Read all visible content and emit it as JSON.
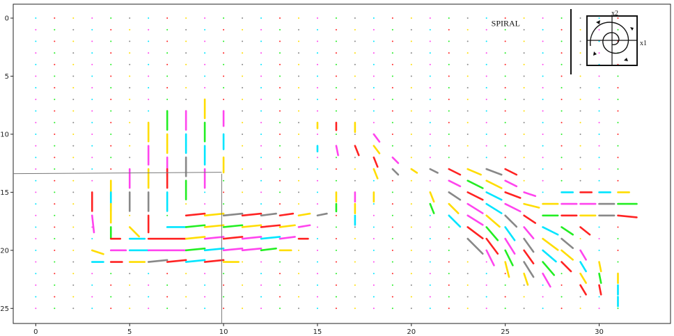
{
  "chart_data": {
    "type": "quiver",
    "title": "",
    "xlabel": "",
    "ylabel": "",
    "xlim": [
      -1.2,
      33.8
    ],
    "ylim": [
      26.3,
      -1.2
    ],
    "x_ticks": [
      0,
      5,
      10,
      15,
      20,
      25,
      30
    ],
    "y_ticks": [
      0,
      5,
      10,
      15,
      20,
      25
    ],
    "grid": false,
    "palette": [
      "#00e5ff",
      "#ff2222",
      "#ffdd00",
      "#ff44ee",
      "#22ee22",
      "#888888"
    ],
    "dot_grid": {
      "x_from": 0,
      "x_to": 31,
      "y_from": 0,
      "y_to": 25,
      "step": 1
    },
    "annotation": {
      "text": "SPIRAL",
      "x": 25,
      "y": 0.7
    },
    "inset": {
      "x1_label": "x1",
      "x2_label": "x2"
    },
    "crosshair": {
      "x": 9.9,
      "y": 13.4
    },
    "vectors": [
      {
        "x": 3,
        "y": 15,
        "u": 0,
        "v": 1,
        "c": 1
      },
      {
        "x": 3,
        "y": 17,
        "u": 0.1,
        "v": 0.9,
        "c": 3
      },
      {
        "x": 3,
        "y": 20,
        "u": 0.6,
        "v": 0.2,
        "c": 2
      },
      {
        "x": 3,
        "y": 21,
        "u": 0.6,
        "v": 0,
        "c": 0
      },
      {
        "x": 4,
        "y": 14,
        "u": 0,
        "v": 1,
        "c": 2
      },
      {
        "x": 4,
        "y": 15,
        "u": 0,
        "v": 1,
        "c": 0
      },
      {
        "x": 4,
        "y": 16,
        "u": 0,
        "v": 1,
        "c": 2
      },
      {
        "x": 4,
        "y": 18,
        "u": 0,
        "v": 0.6,
        "c": 4
      },
      {
        "x": 4,
        "y": 19,
        "u": 0.5,
        "v": 0,
        "c": 1
      },
      {
        "x": 4,
        "y": 20,
        "u": 0.8,
        "v": 0,
        "c": 3
      },
      {
        "x": 4,
        "y": 21,
        "u": 0.6,
        "v": 0,
        "c": 1
      },
      {
        "x": 5,
        "y": 13,
        "u": 0,
        "v": 1,
        "c": 3
      },
      {
        "x": 5,
        "y": 15,
        "u": 0,
        "v": 1,
        "c": 5
      },
      {
        "x": 5,
        "y": 18,
        "u": 0.5,
        "v": 0.5,
        "c": 2
      },
      {
        "x": 5,
        "y": 19,
        "u": 0.8,
        "v": 0,
        "c": 0
      },
      {
        "x": 5,
        "y": 20,
        "u": 1,
        "v": 0,
        "c": 0
      },
      {
        "x": 5,
        "y": 21,
        "u": 0.8,
        "v": 0,
        "c": 2
      },
      {
        "x": 6,
        "y": 9,
        "u": 0,
        "v": 1,
        "c": 2
      },
      {
        "x": 6,
        "y": 11,
        "u": 0,
        "v": 1,
        "c": 3
      },
      {
        "x": 6,
        "y": 13,
        "u": 0,
        "v": 1,
        "c": 2
      },
      {
        "x": 6,
        "y": 15,
        "u": 0,
        "v": 1,
        "c": 5
      },
      {
        "x": 6,
        "y": 17,
        "u": 0,
        "v": 0.9,
        "c": 1
      },
      {
        "x": 6,
        "y": 19,
        "u": 1,
        "v": 0,
        "c": 1
      },
      {
        "x": 6,
        "y": 20,
        "u": 1,
        "v": 0,
        "c": 3
      },
      {
        "x": 6,
        "y": 21,
        "u": 1,
        "v": -0.1,
        "c": 5
      },
      {
        "x": 7,
        "y": 8,
        "u": 0,
        "v": 1,
        "c": 4
      },
      {
        "x": 7,
        "y": 10,
        "u": 0,
        "v": 1,
        "c": 2
      },
      {
        "x": 7,
        "y": 12,
        "u": 0,
        "v": 1,
        "c": 3
      },
      {
        "x": 7,
        "y": 13,
        "u": 0,
        "v": 1,
        "c": 1
      },
      {
        "x": 7,
        "y": 15,
        "u": 0,
        "v": 1,
        "c": 0
      },
      {
        "x": 7,
        "y": 18,
        "u": 1,
        "v": 0,
        "c": 0
      },
      {
        "x": 7,
        "y": 19,
        "u": 1,
        "v": 0,
        "c": 1
      },
      {
        "x": 7,
        "y": 20,
        "u": 1,
        "v": 0,
        "c": 3
      },
      {
        "x": 7,
        "y": 21,
        "u": 1,
        "v": -0.1,
        "c": 1
      },
      {
        "x": 8,
        "y": 8,
        "u": 0,
        "v": 1,
        "c": 3
      },
      {
        "x": 8,
        "y": 10,
        "u": 0,
        "v": 1,
        "c": 0
      },
      {
        "x": 8,
        "y": 12,
        "u": 0,
        "v": 1,
        "c": 5
      },
      {
        "x": 8,
        "y": 14,
        "u": 0,
        "v": 1,
        "c": 4
      },
      {
        "x": 8,
        "y": 17,
        "u": 1,
        "v": -0.1,
        "c": 1
      },
      {
        "x": 8,
        "y": 18,
        "u": 1,
        "v": -0.1,
        "c": 4
      },
      {
        "x": 8,
        "y": 19,
        "u": 1,
        "v": -0.1,
        "c": 2
      },
      {
        "x": 8,
        "y": 20,
        "u": 1,
        "v": -0.1,
        "c": 4
      },
      {
        "x": 8,
        "y": 21,
        "u": 1,
        "v": -0.1,
        "c": 0
      },
      {
        "x": 9,
        "y": 7,
        "u": 0,
        "v": 1,
        "c": 2
      },
      {
        "x": 9,
        "y": 9,
        "u": 0,
        "v": 1,
        "c": 4
      },
      {
        "x": 9,
        "y": 11,
        "u": 0,
        "v": 1,
        "c": 0
      },
      {
        "x": 9,
        "y": 13,
        "u": 0,
        "v": 1,
        "c": 3
      },
      {
        "x": 9,
        "y": 17,
        "u": 1,
        "v": -0.1,
        "c": 2
      },
      {
        "x": 9,
        "y": 18,
        "u": 1,
        "v": -0.1,
        "c": 2
      },
      {
        "x": 9,
        "y": 19,
        "u": 1,
        "v": -0.1,
        "c": 3
      },
      {
        "x": 9,
        "y": 20,
        "u": 1,
        "v": -0.1,
        "c": 0
      },
      {
        "x": 9,
        "y": 21,
        "u": 1,
        "v": -0.1,
        "c": 1
      },
      {
        "x": 10,
        "y": 8,
        "u": 0,
        "v": 0.8,
        "c": 3
      },
      {
        "x": 10,
        "y": 10,
        "u": 0,
        "v": 0.8,
        "c": 0
      },
      {
        "x": 10,
        "y": 12,
        "u": 0,
        "v": 0.8,
        "c": 2
      },
      {
        "x": 10,
        "y": 17,
        "u": 1,
        "v": -0.1,
        "c": 5
      },
      {
        "x": 10,
        "y": 18,
        "u": 1,
        "v": -0.1,
        "c": 4
      },
      {
        "x": 10,
        "y": 19,
        "u": 1,
        "v": -0.1,
        "c": 1
      },
      {
        "x": 10,
        "y": 20,
        "u": 1,
        "v": -0.1,
        "c": 3
      },
      {
        "x": 10,
        "y": 21,
        "u": 0.8,
        "v": 0,
        "c": 2
      },
      {
        "x": 11,
        "y": 17,
        "u": 1,
        "v": -0.1,
        "c": 1
      },
      {
        "x": 11,
        "y": 18,
        "u": 1,
        "v": -0.1,
        "c": 2
      },
      {
        "x": 11,
        "y": 19,
        "u": 1,
        "v": -0.1,
        "c": 3
      },
      {
        "x": 11,
        "y": 20,
        "u": 1,
        "v": -0.1,
        "c": 3
      },
      {
        "x": 12,
        "y": 17,
        "u": 0.8,
        "v": -0.1,
        "c": 5
      },
      {
        "x": 12,
        "y": 18,
        "u": 1,
        "v": -0.1,
        "c": 1
      },
      {
        "x": 12,
        "y": 19,
        "u": 1,
        "v": -0.1,
        "c": 0
      },
      {
        "x": 12,
        "y": 20,
        "u": 0.8,
        "v": -0.1,
        "c": 4
      },
      {
        "x": 13,
        "y": 17,
        "u": 0.7,
        "v": -0.1,
        "c": 1
      },
      {
        "x": 13,
        "y": 18,
        "u": 0.8,
        "v": -0.1,
        "c": 2
      },
      {
        "x": 13,
        "y": 19,
        "u": 0.8,
        "v": -0.1,
        "c": 3
      },
      {
        "x": 13,
        "y": 20,
        "u": 0.6,
        "v": 0,
        "c": 2
      },
      {
        "x": 14,
        "y": 17,
        "u": 0.6,
        "v": -0.1,
        "c": 2
      },
      {
        "x": 14,
        "y": 18,
        "u": 0.6,
        "v": -0.1,
        "c": 3
      },
      {
        "x": 14,
        "y": 19,
        "u": 0.5,
        "v": 0,
        "c": 1
      },
      {
        "x": 15,
        "y": 17,
        "u": 0.5,
        "v": -0.1,
        "c": 5
      },
      {
        "x": 15,
        "y": 9,
        "u": 0,
        "v": 0.3,
        "c": 2
      },
      {
        "x": 15,
        "y": 11,
        "u": 0,
        "v": 0.3,
        "c": 0
      },
      {
        "x": 16,
        "y": 9,
        "u": 0,
        "v": 0.4,
        "c": 1
      },
      {
        "x": 16,
        "y": 11,
        "u": 0.1,
        "v": 0.5,
        "c": 3
      },
      {
        "x": 16,
        "y": 15,
        "u": 0,
        "v": 0.5,
        "c": 2
      },
      {
        "x": 16,
        "y": 16,
        "u": 0,
        "v": 0.4,
        "c": 4
      },
      {
        "x": 17,
        "y": 9,
        "u": 0,
        "v": 0.5,
        "c": 2
      },
      {
        "x": 17,
        "y": 11,
        "u": 0.2,
        "v": 0.5,
        "c": 1
      },
      {
        "x": 17,
        "y": 15,
        "u": 0,
        "v": 0.5,
        "c": 3
      },
      {
        "x": 17,
        "y": 16,
        "u": 0,
        "v": 0.5,
        "c": 2
      },
      {
        "x": 17,
        "y": 17,
        "u": 0,
        "v": 0.5,
        "c": 0
      },
      {
        "x": 18,
        "y": 10,
        "u": 0.3,
        "v": 0.4,
        "c": 3
      },
      {
        "x": 18,
        "y": 11,
        "u": 0.3,
        "v": 0.4,
        "c": 2
      },
      {
        "x": 18,
        "y": 12,
        "u": 0.2,
        "v": 0.5,
        "c": 1
      },
      {
        "x": 18,
        "y": 13,
        "u": 0.2,
        "v": 0.5,
        "c": 2
      },
      {
        "x": 18,
        "y": 15,
        "u": 0,
        "v": 0.5,
        "c": 2
      },
      {
        "x": 19,
        "y": 12,
        "u": 0.3,
        "v": 0.3,
        "c": 3
      },
      {
        "x": 19,
        "y": 13,
        "u": 0.3,
        "v": 0.3,
        "c": 5
      },
      {
        "x": 20,
        "y": 13,
        "u": 0.3,
        "v": 0.2,
        "c": 2
      },
      {
        "x": 21,
        "y": 13,
        "u": 0.4,
        "v": 0.2,
        "c": 5
      },
      {
        "x": 21,
        "y": 15,
        "u": 0.2,
        "v": 0.5,
        "c": 2
      },
      {
        "x": 21,
        "y": 16,
        "u": 0.2,
        "v": 0.5,
        "c": 4
      },
      {
        "x": 22,
        "y": 13,
        "u": 0.6,
        "v": 0.3,
        "c": 1
      },
      {
        "x": 22,
        "y": 14,
        "u": 0.6,
        "v": 0.3,
        "c": 3
      },
      {
        "x": 22,
        "y": 15,
        "u": 0.6,
        "v": 0.4,
        "c": 5
      },
      {
        "x": 22,
        "y": 16,
        "u": 0.5,
        "v": 0.5,
        "c": 2
      },
      {
        "x": 22,
        "y": 17,
        "u": 0.6,
        "v": 0.6,
        "c": 0
      },
      {
        "x": 23,
        "y": 13,
        "u": 0.7,
        "v": 0.3,
        "c": 2
      },
      {
        "x": 23,
        "y": 14,
        "u": 0.8,
        "v": 0.4,
        "c": 4
      },
      {
        "x": 23,
        "y": 15,
        "u": 0.8,
        "v": 0.4,
        "c": 1
      },
      {
        "x": 23,
        "y": 16,
        "u": 0.8,
        "v": 0.5,
        "c": 3
      },
      {
        "x": 23,
        "y": 17,
        "u": 0.8,
        "v": 0.5,
        "c": 3
      },
      {
        "x": 23,
        "y": 18,
        "u": 0.8,
        "v": 0.6,
        "c": 1
      },
      {
        "x": 23,
        "y": 19,
        "u": 0.8,
        "v": 0.8,
        "c": 5
      },
      {
        "x": 24,
        "y": 13,
        "u": 0.8,
        "v": 0.3,
        "c": 5
      },
      {
        "x": 24,
        "y": 14,
        "u": 0.8,
        "v": 0.4,
        "c": 2
      },
      {
        "x": 24,
        "y": 15,
        "u": 0.8,
        "v": 0.4,
        "c": 0
      },
      {
        "x": 24,
        "y": 16,
        "u": 0.8,
        "v": 0.5,
        "c": 0
      },
      {
        "x": 24,
        "y": 17,
        "u": 0.7,
        "v": 0.6,
        "c": 2
      },
      {
        "x": 24,
        "y": 18,
        "u": 0.6,
        "v": 0.7,
        "c": 4
      },
      {
        "x": 24,
        "y": 19,
        "u": 0.6,
        "v": 0.8,
        "c": 1
      },
      {
        "x": 24,
        "y": 20,
        "u": 0.4,
        "v": 0.8,
        "c": 3
      },
      {
        "x": 25,
        "y": 13,
        "u": 0.6,
        "v": 0.3,
        "c": 1
      },
      {
        "x": 25,
        "y": 14,
        "u": 0.6,
        "v": 0.3,
        "c": 3
      },
      {
        "x": 25,
        "y": 15,
        "u": 0.8,
        "v": 0.3,
        "c": 1
      },
      {
        "x": 25,
        "y": 16,
        "u": 0.8,
        "v": 0.4,
        "c": 3
      },
      {
        "x": 25,
        "y": 17,
        "u": 0.6,
        "v": 0.6,
        "c": 5
      },
      {
        "x": 25,
        "y": 18,
        "u": 0.5,
        "v": 0.7,
        "c": 0
      },
      {
        "x": 25,
        "y": 19,
        "u": 0.5,
        "v": 0.8,
        "c": 3
      },
      {
        "x": 25,
        "y": 20,
        "u": 0.4,
        "v": 0.8,
        "c": 4
      },
      {
        "x": 25,
        "y": 21,
        "u": 0.2,
        "v": 0.8,
        "c": 2
      },
      {
        "x": 26,
        "y": 15,
        "u": 0.6,
        "v": 0.2,
        "c": 3
      },
      {
        "x": 26,
        "y": 16,
        "u": 0.8,
        "v": 0.2,
        "c": 2
      },
      {
        "x": 26,
        "y": 17,
        "u": 0.6,
        "v": 0.4,
        "c": 1
      },
      {
        "x": 26,
        "y": 18,
        "u": 0.5,
        "v": 0.6,
        "c": 3
      },
      {
        "x": 26,
        "y": 19,
        "u": 0.5,
        "v": 0.7,
        "c": 5
      },
      {
        "x": 26,
        "y": 20,
        "u": 0.5,
        "v": 0.7,
        "c": 1
      },
      {
        "x": 26,
        "y": 21,
        "u": 0.5,
        "v": 0.8,
        "c": 5
      },
      {
        "x": 26,
        "y": 22,
        "u": 0.2,
        "v": 0.6,
        "c": 2
      },
      {
        "x": 27,
        "y": 16,
        "u": 0.8,
        "v": 0,
        "c": 2
      },
      {
        "x": 27,
        "y": 17,
        "u": 0.8,
        "v": 0,
        "c": 4
      },
      {
        "x": 27,
        "y": 18,
        "u": 0.8,
        "v": 0.4,
        "c": 0
      },
      {
        "x": 27,
        "y": 19,
        "u": 0.8,
        "v": 0.6,
        "c": 2
      },
      {
        "x": 27,
        "y": 20,
        "u": 0.7,
        "v": 0.6,
        "c": 0
      },
      {
        "x": 27,
        "y": 21,
        "u": 0.6,
        "v": 0.7,
        "c": 4
      },
      {
        "x": 27,
        "y": 22,
        "u": 0.4,
        "v": 0.7,
        "c": 3
      },
      {
        "x": 28,
        "y": 15,
        "u": 0.6,
        "v": 0,
        "c": 0
      },
      {
        "x": 28,
        "y": 16,
        "u": 0.8,
        "v": 0,
        "c": 3
      },
      {
        "x": 28,
        "y": 17,
        "u": 0.8,
        "v": 0,
        "c": 1
      },
      {
        "x": 28,
        "y": 18,
        "u": 0.6,
        "v": 0.4,
        "c": 4
      },
      {
        "x": 28,
        "y": 19,
        "u": 0.6,
        "v": 0.5,
        "c": 5
      },
      {
        "x": 28,
        "y": 20,
        "u": 0.6,
        "v": 0.5,
        "c": 2
      },
      {
        "x": 28,
        "y": 21,
        "u": 0.5,
        "v": 0.5,
        "c": 1
      },
      {
        "x": 29,
        "y": 15,
        "u": 0.6,
        "v": 0,
        "c": 1
      },
      {
        "x": 29,
        "y": 16,
        "u": 0.8,
        "v": 0,
        "c": 3
      },
      {
        "x": 29,
        "y": 17,
        "u": 0.8,
        "v": 0,
        "c": 2
      },
      {
        "x": 29,
        "y": 18,
        "u": 0.5,
        "v": 0.4,
        "c": 1
      },
      {
        "x": 29,
        "y": 20,
        "u": 0.3,
        "v": 0.5,
        "c": 3
      },
      {
        "x": 29,
        "y": 21,
        "u": 0.3,
        "v": 0.5,
        "c": 0
      },
      {
        "x": 29,
        "y": 22,
        "u": 0.3,
        "v": 0.5,
        "c": 2
      },
      {
        "x": 29,
        "y": 23,
        "u": 0.3,
        "v": 0.5,
        "c": 1
      },
      {
        "x": 30,
        "y": 15,
        "u": 0.6,
        "v": 0,
        "c": 0
      },
      {
        "x": 30,
        "y": 16,
        "u": 0.8,
        "v": 0,
        "c": 5
      },
      {
        "x": 30,
        "y": 17,
        "u": 0.8,
        "v": 0,
        "c": 5
      },
      {
        "x": 30,
        "y": 21,
        "u": 0.1,
        "v": 0.5,
        "c": 2
      },
      {
        "x": 30,
        "y": 22,
        "u": 0.1,
        "v": 0.5,
        "c": 4
      },
      {
        "x": 30,
        "y": 23,
        "u": 0.1,
        "v": 0.5,
        "c": 1
      },
      {
        "x": 31,
        "y": 15,
        "u": 0.6,
        "v": 0,
        "c": 2
      },
      {
        "x": 31,
        "y": 16,
        "u": 1,
        "v": 0,
        "c": 4
      },
      {
        "x": 31,
        "y": 17,
        "u": 1,
        "v": 0.1,
        "c": 1
      },
      {
        "x": 31,
        "y": 22,
        "u": 0,
        "v": 0.5,
        "c": 2
      },
      {
        "x": 31,
        "y": 23,
        "u": 0,
        "v": 0.5,
        "c": 0
      },
      {
        "x": 31,
        "y": 24,
        "u": 0,
        "v": 0.5,
        "c": 0
      }
    ]
  }
}
